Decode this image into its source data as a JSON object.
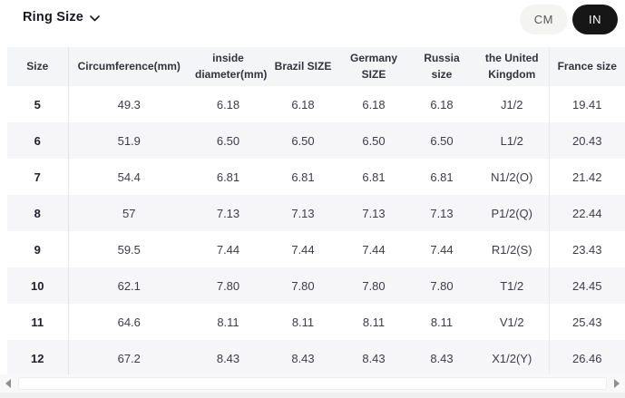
{
  "header": {
    "ring_size_label": "Ring Size",
    "chevron_icon": "chevron-down",
    "units": [
      {
        "label": "CM",
        "active": false
      },
      {
        "label": "IN",
        "active": true
      }
    ]
  },
  "colors": {
    "active_pill_bg": "#161616",
    "active_pill_text": "#ffffff",
    "inactive_pill_bg": "#f4f4f2",
    "table_header_bg": "#f4f5f6",
    "row_stripe_bg": "#f6f6f8",
    "divider": "#e3e3e6",
    "text": "#3c3d46"
  },
  "table": {
    "columns": [
      "Size",
      "Circumference(mm)",
      "inside diameter(mm)",
      "Brazil SIZE",
      "Germany SIZE",
      "Russia size",
      "the United Kingdom",
      "France size"
    ],
    "rows": [
      [
        "5",
        "49.3",
        "6.18",
        "6.18",
        "6.18",
        "6.18",
        "J1/2",
        "19.41"
      ],
      [
        "6",
        "51.9",
        "6.50",
        "6.50",
        "6.50",
        "6.50",
        "L1/2",
        "20.43"
      ],
      [
        "7",
        "54.4",
        "6.81",
        "6.81",
        "6.81",
        "6.81",
        "N1/2(O)",
        "21.42"
      ],
      [
        "8",
        "57",
        "7.13",
        "7.13",
        "7.13",
        "7.13",
        "P1/2(Q)",
        "22.44"
      ],
      [
        "9",
        "59.5",
        "7.44",
        "7.44",
        "7.44",
        "7.44",
        "R1/2(S)",
        "23.43"
      ],
      [
        "10",
        "62.1",
        "7.80",
        "7.80",
        "7.80",
        "7.80",
        "T1/2",
        "24.45"
      ],
      [
        "11",
        "64.6",
        "8.11",
        "8.11",
        "8.11",
        "8.11",
        "V1/2",
        "25.43"
      ],
      [
        "12",
        "67.2",
        "8.43",
        "8.43",
        "8.43",
        "8.43",
        "X1/2(Y)",
        "26.46"
      ]
    ]
  }
}
